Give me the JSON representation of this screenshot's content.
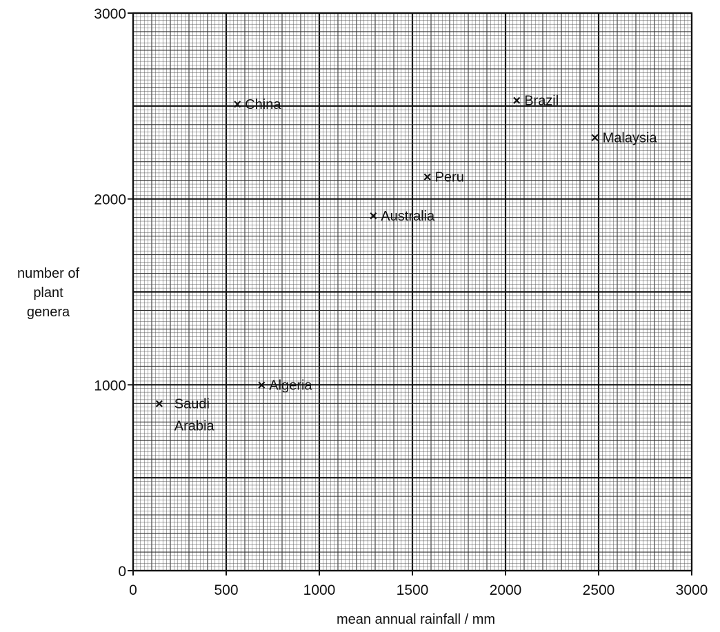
{
  "chart_data": {
    "type": "scatter",
    "xlabel": "mean annual rainfall / mm",
    "ylabel_lines": [
      "number of",
      "plant",
      "genera"
    ],
    "xlim": [
      0,
      3000
    ],
    "ylim": [
      0,
      3000
    ],
    "x_ticks": [
      0,
      500,
      1000,
      1500,
      2000,
      2500,
      3000
    ],
    "y_ticks": [
      0,
      1000,
      2000,
      3000
    ],
    "grid": true,
    "marker": "×",
    "points": [
      {
        "label": [
          "China"
        ],
        "x": 560,
        "y": 2510
      },
      {
        "label": [
          "Brazil"
        ],
        "x": 2060,
        "y": 2530
      },
      {
        "label": [
          "Malaysia"
        ],
        "x": 2480,
        "y": 2330
      },
      {
        "label": [
          "Peru"
        ],
        "x": 1580,
        "y": 2120
      },
      {
        "label": [
          "Australia"
        ],
        "x": 1290,
        "y": 1910
      },
      {
        "label": [
          "Algeria"
        ],
        "x": 690,
        "y": 1000
      },
      {
        "label": [
          "Saudi",
          "Arabia"
        ],
        "x": 140,
        "y": 900
      }
    ]
  }
}
